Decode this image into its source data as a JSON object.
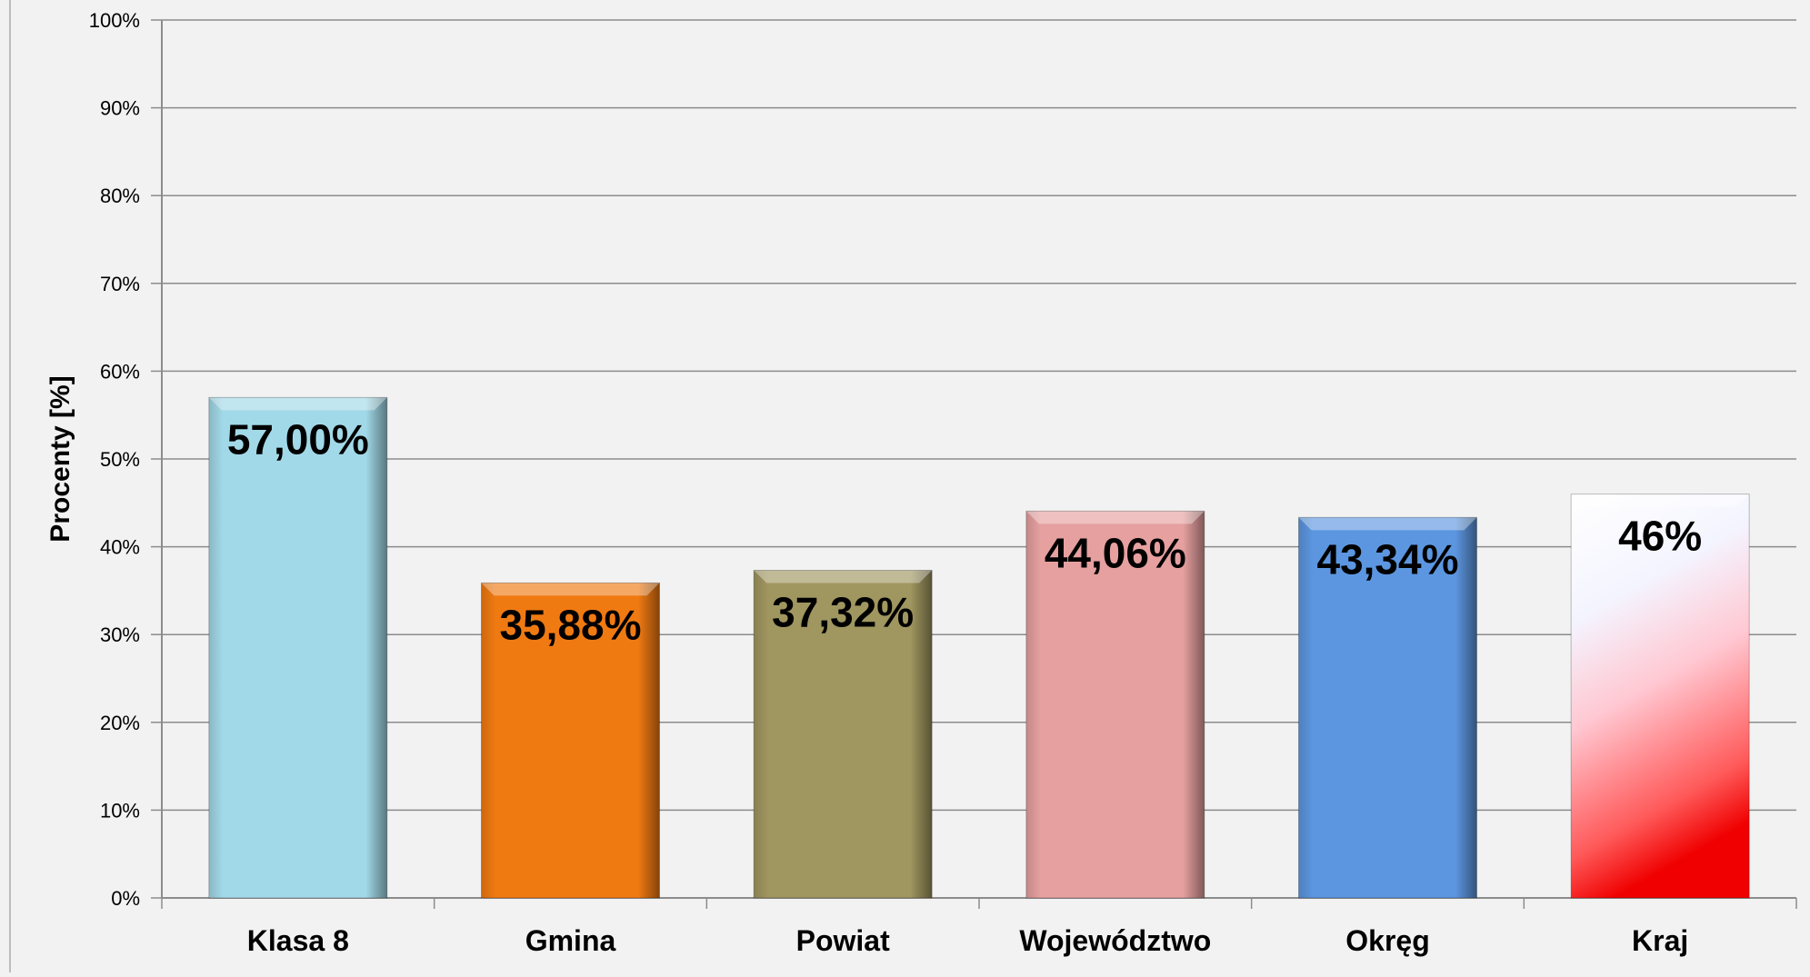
{
  "chart_data": {
    "type": "bar",
    "categories": [
      "Klasa 8",
      "Gmina",
      "Powiat",
      "Województwo",
      "Okręg",
      "Kraj"
    ],
    "values": [
      57.0,
      35.88,
      37.32,
      44.06,
      43.34,
      46
    ],
    "value_labels": [
      "57,00%",
      "35,88%",
      "37,32%",
      "44,06%",
      "43,34%",
      "46%"
    ],
    "bar_colors": [
      "#a2d9e8",
      "#f07a12",
      "#a09660",
      "#e6a0a0",
      "#5c96e0",
      "#ff2020"
    ],
    "title": "",
    "xlabel": "",
    "ylabel": "Procenty [%]",
    "ylim": [
      0,
      100
    ],
    "yticks": [
      0,
      10,
      20,
      30,
      40,
      50,
      60,
      70,
      80,
      90,
      100
    ],
    "ytick_labels": [
      "0%",
      "10%",
      "20%",
      "30%",
      "40%",
      "50%",
      "60%",
      "70%",
      "80%",
      "90%",
      "100%"
    ],
    "grid": true,
    "legend": "none"
  }
}
